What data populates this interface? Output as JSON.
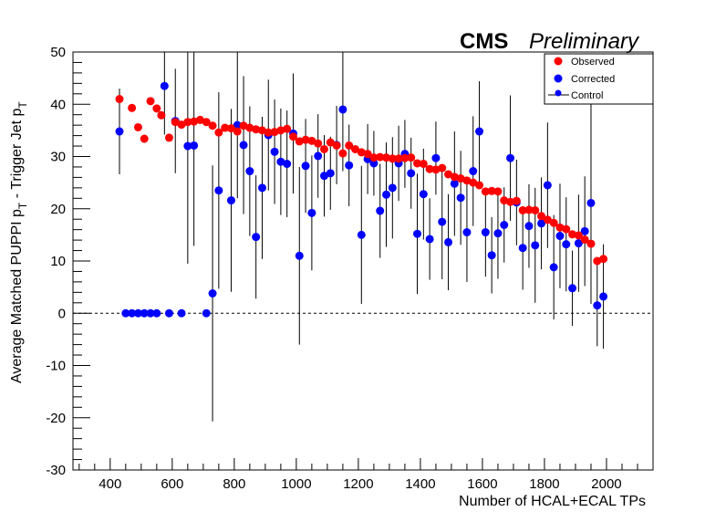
{
  "header": {
    "experiment": "CMS",
    "status": "Preliminary"
  },
  "chart_data": {
    "type": "scatter",
    "title": "",
    "xlabel": "Number of HCAL+ECAL TPs",
    "ylabel_parts": [
      "Average Matched PUPPI p",
      "T",
      " - Trigger Jet p",
      "T"
    ],
    "xlim": [
      280,
      2150
    ],
    "ylim": [
      -30,
      50
    ],
    "x_ticks": [
      400,
      600,
      800,
      1000,
      1200,
      1400,
      1600,
      1800,
      2000
    ],
    "y_ticks": [
      -30,
      -20,
      -10,
      0,
      10,
      20,
      30,
      40,
      50
    ],
    "reference_line": {
      "y": 0,
      "style": "dashed"
    },
    "legend": {
      "placement": "top-right",
      "entries": [
        "Observed",
        "Corrected",
        "Control"
      ]
    },
    "colors": {
      "Observed": "#ff0000",
      "Corrected": "#0000ff",
      "Control": "#000000"
    },
    "series": [
      {
        "name": "Observed",
        "points": [
          [
            430,
            41.0
          ],
          [
            470,
            39.3
          ],
          [
            490,
            35.6
          ],
          [
            510,
            33.4
          ],
          [
            530,
            40.6
          ],
          [
            550,
            39.2
          ],
          [
            565,
            37.9
          ],
          [
            590,
            33.6
          ],
          [
            610,
            36.6
          ],
          [
            630,
            36.1
          ],
          [
            650,
            36.6
          ],
          [
            670,
            36.7
          ],
          [
            690,
            37.0
          ],
          [
            710,
            36.6
          ],
          [
            730,
            35.9
          ],
          [
            750,
            34.6
          ],
          [
            770,
            35.5
          ],
          [
            790,
            35.4
          ],
          [
            810,
            34.8
          ],
          [
            830,
            35.9
          ],
          [
            850,
            35.5
          ],
          [
            870,
            35.2
          ],
          [
            890,
            35.0
          ],
          [
            910,
            34.6
          ],
          [
            930,
            34.7
          ],
          [
            950,
            35.0
          ],
          [
            970,
            35.3
          ],
          [
            990,
            33.8
          ],
          [
            1010,
            32.9
          ],
          [
            1030,
            33.2
          ],
          [
            1050,
            33.0
          ],
          [
            1070,
            32.5
          ],
          [
            1090,
            31.4
          ],
          [
            1110,
            32.7
          ],
          [
            1130,
            32.1
          ],
          [
            1150,
            30.6
          ],
          [
            1170,
            32.1
          ],
          [
            1190,
            31.4
          ],
          [
            1210,
            30.8
          ],
          [
            1230,
            30.5
          ],
          [
            1250,
            29.8
          ],
          [
            1270,
            29.9
          ],
          [
            1290,
            29.8
          ],
          [
            1310,
            29.6
          ],
          [
            1330,
            29.6
          ],
          [
            1350,
            29.7
          ],
          [
            1370,
            29.8
          ],
          [
            1390,
            28.7
          ],
          [
            1410,
            28.6
          ],
          [
            1430,
            27.6
          ],
          [
            1450,
            27.5
          ],
          [
            1470,
            27.8
          ],
          [
            1490,
            26.6
          ],
          [
            1510,
            26.1
          ],
          [
            1530,
            25.8
          ],
          [
            1550,
            25.4
          ],
          [
            1570,
            25.0
          ],
          [
            1590,
            24.5
          ],
          [
            1610,
            23.3
          ],
          [
            1630,
            23.4
          ],
          [
            1650,
            23.3
          ],
          [
            1670,
            21.6
          ],
          [
            1690,
            21.3
          ],
          [
            1710,
            21.5
          ],
          [
            1730,
            19.7
          ],
          [
            1750,
            19.8
          ],
          [
            1770,
            19.7
          ],
          [
            1790,
            18.6
          ],
          [
            1810,
            17.9
          ],
          [
            1830,
            17.3
          ],
          [
            1850,
            16.4
          ],
          [
            1870,
            16.1
          ],
          [
            1890,
            15.1
          ],
          [
            1910,
            14.9
          ],
          [
            1930,
            14.1
          ],
          [
            1950,
            13.3
          ],
          [
            1970,
            10.0
          ],
          [
            1990,
            10.4
          ]
        ]
      },
      {
        "name": "Corrected",
        "points": [
          [
            430,
            34.8,
            8.2
          ],
          [
            450,
            0.0,
            0
          ],
          [
            470,
            0.0,
            0
          ],
          [
            490,
            0.0,
            0
          ],
          [
            510,
            0.0,
            0
          ],
          [
            530,
            0.0,
            0
          ],
          [
            550,
            0.0,
            0
          ],
          [
            575,
            43.5,
            9.3
          ],
          [
            590,
            0.0,
            0
          ],
          [
            610,
            36.8,
            10.0
          ],
          [
            630,
            0.0,
            0
          ],
          [
            650,
            32.0,
            22.5
          ],
          [
            670,
            32.1,
            19.2
          ],
          [
            710,
            0.0,
            0
          ],
          [
            730,
            3.8,
            24.5
          ],
          [
            750,
            23.5,
            18.8
          ],
          [
            790,
            21.6,
            17.5
          ],
          [
            810,
            36.0,
            14.0
          ],
          [
            830,
            32.2,
            13.2
          ],
          [
            850,
            27.2,
            12.4
          ],
          [
            870,
            14.6,
            11.8
          ],
          [
            890,
            24.0,
            13.6
          ],
          [
            910,
            34.1,
            10.6
          ],
          [
            930,
            30.9,
            10.0
          ],
          [
            950,
            29.0,
            10.2
          ],
          [
            970,
            28.6,
            10.2
          ],
          [
            990,
            34.4,
            11.5
          ],
          [
            1010,
            11.0,
            17.0
          ],
          [
            1030,
            28.2,
            9.0
          ],
          [
            1050,
            19.2,
            11.0
          ],
          [
            1070,
            30.1,
            8.0
          ],
          [
            1090,
            26.3,
            7.8
          ],
          [
            1110,
            26.8,
            7.0
          ],
          [
            1130,
            32.2,
            7.5
          ],
          [
            1150,
            39.0,
            11.8
          ],
          [
            1170,
            28.3,
            7.8
          ],
          [
            1210,
            15.0,
            13.2
          ],
          [
            1230,
            29.5,
            6.7
          ],
          [
            1250,
            28.7,
            6.2
          ],
          [
            1270,
            19.6,
            9.0
          ],
          [
            1290,
            22.7,
            10.0
          ],
          [
            1310,
            24.0,
            9.7
          ],
          [
            1330,
            28.7,
            7.2
          ],
          [
            1350,
            30.5,
            6.5
          ],
          [
            1370,
            26.8,
            6.8
          ],
          [
            1390,
            15.2,
            11.5
          ],
          [
            1410,
            22.8,
            8.7
          ],
          [
            1430,
            14.2,
            7.8
          ],
          [
            1450,
            29.7,
            7.0
          ],
          [
            1470,
            17.5,
            11.0
          ],
          [
            1490,
            13.6,
            9.2
          ],
          [
            1510,
            24.8,
            10.0
          ],
          [
            1530,
            22.1,
            9.0
          ],
          [
            1550,
            15.5,
            9.5
          ],
          [
            1570,
            27.2,
            10.5
          ],
          [
            1590,
            34.8,
            9.6
          ],
          [
            1610,
            15.5,
            8.5
          ],
          [
            1630,
            11.1,
            7.3
          ],
          [
            1650,
            15.3,
            8.7
          ],
          [
            1670,
            16.9,
            7.2
          ],
          [
            1690,
            29.7,
            12.0
          ],
          [
            1710,
            21.2,
            8.2
          ],
          [
            1730,
            12.5,
            8.0
          ],
          [
            1750,
            16.7,
            8.0
          ],
          [
            1770,
            13.0,
            11.0
          ],
          [
            1790,
            17.2,
            8.8
          ],
          [
            1810,
            24.5,
            12.0
          ],
          [
            1830,
            8.8,
            10.0
          ],
          [
            1850,
            14.8,
            10.0
          ],
          [
            1870,
            13.2,
            9.0
          ],
          [
            1890,
            4.8,
            7.2
          ],
          [
            1910,
            13.4,
            9.3
          ],
          [
            1930,
            15.7,
            10.5
          ],
          [
            1950,
            21.1,
            19.3
          ],
          [
            1970,
            1.5,
            7.8
          ],
          [
            1990,
            3.2,
            10.0
          ]
        ]
      }
    ]
  }
}
